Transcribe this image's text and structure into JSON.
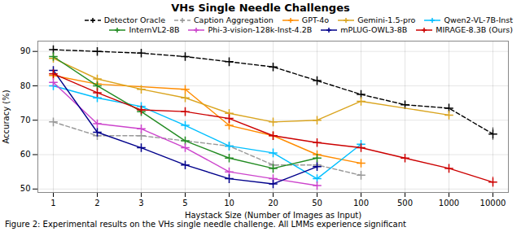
{
  "chart_data": {
    "type": "line",
    "title": "VHs Single Needle Challenges",
    "xlabel": "Haystack Size (Number of Images as Input)",
    "ylabel": "Accuracy (%)",
    "caption": "Figure 2: Experimental results on the VHs single needle challenge. All LMMs experience significant",
    "categories": [
      "1",
      "2",
      "3",
      "5",
      "10",
      "20",
      "50",
      "100",
      "500",
      "1000",
      "10000"
    ],
    "ylim": [
      49,
      93
    ],
    "yticks": [
      50,
      60,
      70,
      80,
      90
    ],
    "grid": true,
    "legend": "upper right",
    "series": [
      {
        "name": "Detector Oracle",
        "color": "#000000",
        "line_style": "dashed",
        "marker": "plus",
        "x": [
          "1",
          "2",
          "3",
          "5",
          "10",
          "20",
          "50",
          "100",
          "500",
          "1000",
          "10000"
        ],
        "values": [
          90.5,
          90.0,
          89.5,
          88.5,
          87.0,
          85.5,
          81.5,
          77.5,
          74.5,
          73.5,
          66.0
        ],
        "errors": [
          0.5,
          0.4,
          0.5,
          0.4,
          0.5,
          0.5,
          0.8,
          0.9,
          1.0,
          1.2,
          1.8
        ]
      },
      {
        "name": "Caption Aggregation",
        "color": "#999999",
        "line_style": "dashed",
        "marker": "plus",
        "x": [
          "1",
          "2",
          "3",
          "10",
          "20",
          "50",
          "100"
        ],
        "values": [
          69.5,
          65.5,
          65.5,
          62.5,
          57.0,
          57.0,
          54.0
        ],
        "errors": [
          0.8,
          0.8,
          0.8,
          0.8,
          0.8,
          0.8,
          0.8
        ]
      },
      {
        "name": "GPT-4o",
        "color": "#FF8C00",
        "line_style": "solid",
        "marker": "plus",
        "x": [
          "1",
          "2",
          "5",
          "10",
          "20",
          "50",
          "100"
        ],
        "values": [
          83.0,
          80.5,
          79.0,
          68.5,
          65.5,
          60.0,
          57.5
        ],
        "errors": [
          0.8,
          0.8,
          0.8,
          0.8,
          0.8,
          0.8,
          0.8
        ]
      },
      {
        "name": "Gemini-1.5-pro",
        "color": "#DAA520",
        "line_style": "solid",
        "marker": "plus",
        "x": [
          "1",
          "2",
          "3",
          "5",
          "10",
          "20",
          "50",
          "100",
          "1000"
        ],
        "values": [
          88.0,
          82.0,
          79.0,
          76.5,
          72.0,
          69.5,
          70.0,
          75.5,
          71.5
        ],
        "errors": [
          0.8,
          0.8,
          0.8,
          0.8,
          0.8,
          0.8,
          0.8,
          0.8,
          0.8
        ]
      },
      {
        "name": "Qwen2-VL-7B-Inst",
        "color": "#00BFFF",
        "line_style": "solid",
        "marker": "plus",
        "x": [
          "1",
          "2",
          "3",
          "5",
          "10",
          "20",
          "50",
          "100"
        ],
        "values": [
          80.0,
          76.5,
          74.0,
          68.5,
          62.5,
          60.5,
          53.0,
          63.0
        ],
        "errors": [
          0.8,
          0.8,
          0.8,
          0.8,
          0.8,
          0.8,
          0.8,
          0.8
        ]
      },
      {
        "name": "InternVL2-8B",
        "color": "#228B22",
        "line_style": "solid",
        "marker": "plus",
        "x": [
          "1",
          "2",
          "3",
          "5",
          "10",
          "20",
          "50"
        ],
        "values": [
          88.5,
          80.0,
          72.5,
          64.0,
          59.0,
          56.0,
          59.0
        ],
        "errors": [
          0.8,
          0.8,
          0.8,
          0.8,
          0.8,
          0.8,
          0.8
        ]
      },
      {
        "name": "Phi-3-vision-128k-Inst-4.2B",
        "color": "#CC44CC",
        "line_style": "solid",
        "marker": "plus",
        "x": [
          "1",
          "2",
          "3",
          "5",
          "10",
          "20",
          "50"
        ],
        "values": [
          81.0,
          69.0,
          67.5,
          62.0,
          55.0,
          53.0,
          51.0
        ],
        "errors": [
          0.8,
          0.8,
          0.8,
          0.8,
          0.8,
          0.8,
          0.8
        ]
      },
      {
        "name": "mPLUG-OWL3-8B",
        "color": "#00008B",
        "line_style": "solid",
        "marker": "plus",
        "x": [
          "1",
          "2",
          "3",
          "5",
          "10",
          "20",
          "50"
        ],
        "values": [
          84.5,
          66.5,
          62.0,
          57.0,
          53.0,
          51.5,
          56.5
        ],
        "errors": [
          0.8,
          0.8,
          0.8,
          0.8,
          0.8,
          0.8,
          0.8
        ]
      },
      {
        "name": "MIRAGE-8.3B (Ours)",
        "color": "#CC0000",
        "line_style": "solid",
        "marker": "plus",
        "x": [
          "1",
          "2",
          "3",
          "5",
          "10",
          "20",
          "50",
          "100",
          "500",
          "1000",
          "10000"
        ],
        "values": [
          83.5,
          78.0,
          73.0,
          72.5,
          70.5,
          65.5,
          63.5,
          62.0,
          59.0,
          56.0,
          52.0
        ],
        "errors": [
          0.8,
          0.8,
          0.8,
          0.8,
          0.8,
          0.8,
          0.8,
          0.8,
          0.8,
          0.8,
          1.5
        ]
      }
    ]
  }
}
